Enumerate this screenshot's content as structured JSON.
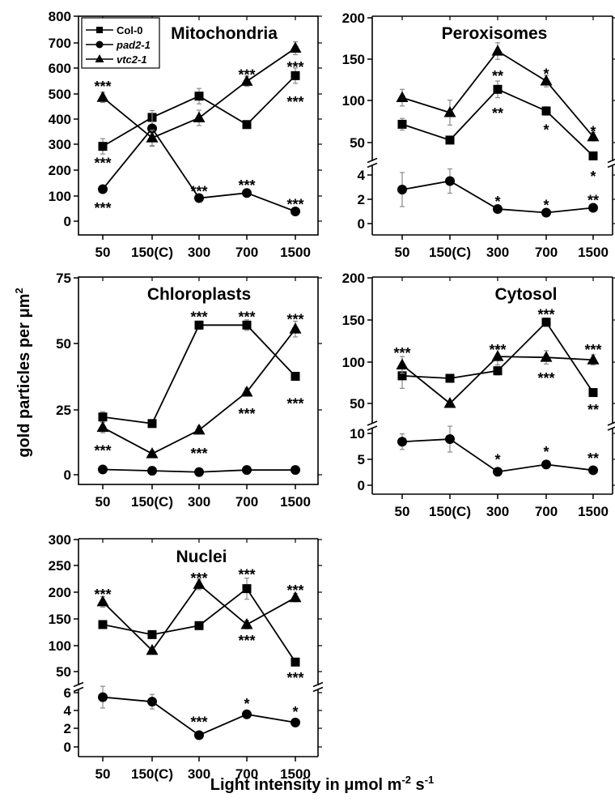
{
  "figure": {
    "ylabel": "gold particles per μm",
    "ylabel_superscript": "2",
    "xlabel": "Light intensity in μmol m",
    "xlabel_sup1": "-2",
    "xlabel_mid": " s",
    "xlabel_sup2": "-1"
  },
  "legend": {
    "entries": [
      {
        "label": "Col-0",
        "marker": "square"
      },
      {
        "label": "pad2-1",
        "marker": "circle"
      },
      {
        "label": "vtc2-1",
        "marker": "triangle"
      }
    ]
  },
  "chart_data": [
    {
      "type": "line",
      "title": "Mitochondria",
      "categories": [
        "50",
        "150(C)",
        "300",
        "700",
        "1500"
      ],
      "yticks": [
        "0",
        "100",
        "200",
        "300",
        "400",
        "500",
        "600",
        "700",
        "800"
      ],
      "ylim": [
        0,
        800
      ],
      "series": [
        {
          "name": "Col-0",
          "marker": "square",
          "values": [
            292,
            405,
            488,
            377,
            568
          ],
          "errors": [
            30,
            15,
            30,
            12,
            30
          ]
        },
        {
          "name": "pad2-1",
          "marker": "circle",
          "values": [
            125,
            362,
            90,
            110,
            38
          ],
          "errors": [
            12,
            70,
            12,
            15,
            8
          ]
        },
        {
          "name": "vtc2-1",
          "marker": "triangle",
          "values": [
            483,
            325,
            403,
            546,
            675
          ],
          "errors": [
            20,
            30,
            30,
            20,
            25
          ]
        }
      ],
      "annotations": [
        {
          "cat": 0,
          "value": 535,
          "text": "***"
        },
        {
          "cat": 0,
          "value": 235,
          "text": "***"
        },
        {
          "cat": 0,
          "value": 60,
          "text": "***"
        },
        {
          "cat": 2,
          "value": 125,
          "text": "***"
        },
        {
          "cat": 3,
          "value": 580,
          "text": "***"
        },
        {
          "cat": 3,
          "value": 148,
          "text": "***"
        },
        {
          "cat": 4,
          "value": 610,
          "text": "***"
        },
        {
          "cat": 4,
          "value": 475,
          "text": "***"
        },
        {
          "cat": 4,
          "value": 75,
          "text": "***"
        }
      ]
    },
    {
      "type": "line",
      "title": "Peroxisomes",
      "categories": [
        "50",
        "150(C)",
        "300",
        "700",
        "1500"
      ],
      "broken_axis": true,
      "upper": {
        "ylim": [
          40,
          200
        ],
        "yticks": [
          "50",
          "100",
          "150",
          "200"
        ]
      },
      "lower": {
        "ylim": [
          0,
          4.5
        ],
        "yticks": [
          "0",
          "2",
          "4"
        ]
      },
      "series": [
        {
          "name": "Col-0",
          "marker": "square",
          "segment": "upper",
          "values": [
            72,
            53,
            114,
            88,
            34
          ],
          "errors": [
            7,
            3,
            10,
            5,
            3
          ]
        },
        {
          "name": "vtc2-1",
          "marker": "triangle",
          "segment": "upper",
          "values": [
            104,
            86,
            160,
            124,
            57
          ],
          "errors": [
            10,
            15,
            10,
            7,
            5
          ]
        },
        {
          "name": "pad2-1",
          "marker": "circle",
          "segment": "lower",
          "values": [
            2.8,
            3.5,
            1.2,
            0.9,
            1.3
          ],
          "errors": [
            1.4,
            1.0,
            0.2,
            0.1,
            0.2
          ]
        }
      ],
      "annotations": [
        {
          "cat": 2,
          "segment": "upper",
          "value": 133,
          "text": "**"
        },
        {
          "cat": 2,
          "segment": "upper",
          "value": 88,
          "text": "**"
        },
        {
          "cat": 3,
          "segment": "upper",
          "value": 135,
          "text": "*"
        },
        {
          "cat": 3,
          "segment": "upper",
          "value": 68,
          "text": "*"
        },
        {
          "cat": 4,
          "segment": "upper",
          "value": 66,
          "text": "*"
        },
        {
          "cat": 4,
          "segment": "upper",
          "value": 12,
          "text": "*"
        },
        {
          "cat": 2,
          "segment": "lower",
          "value": 2.0,
          "text": "*"
        },
        {
          "cat": 3,
          "segment": "lower",
          "value": 1.7,
          "text": "*"
        },
        {
          "cat": 4,
          "segment": "lower",
          "value": 2.1,
          "text": "**"
        }
      ]
    },
    {
      "type": "line",
      "title": "Chloroplasts",
      "categories": [
        "50",
        "150(C)",
        "300",
        "700",
        "1500"
      ],
      "yticks": [
        "0",
        "25",
        "50",
        "75"
      ],
      "ylim": [
        -4,
        75
      ],
      "series": [
        {
          "name": "Col-0",
          "marker": "square",
          "values": [
            22,
            19.5,
            57,
            57,
            37.5
          ],
          "errors": [
            2,
            1,
            1.5,
            2,
            1.5
          ]
        },
        {
          "name": "pad2-1",
          "marker": "circle",
          "values": [
            2,
            1.5,
            1,
            1.8,
            1.8
          ],
          "errors": [
            0.5,
            0.4,
            0.3,
            0.4,
            0.4
          ]
        },
        {
          "name": "vtc2-1",
          "marker": "triangle",
          "values": [
            18,
            8,
            17,
            31.5,
            55.5
          ],
          "errors": [
            2,
            1,
            1.5,
            1.5,
            3
          ]
        }
      ],
      "annotations": [
        {
          "cat": 0,
          "value": 10,
          "text": "***"
        },
        {
          "cat": 2,
          "value": 61,
          "text": "***"
        },
        {
          "cat": 2,
          "value": 9,
          "text": "***"
        },
        {
          "cat": 3,
          "value": 61,
          "text": "***"
        },
        {
          "cat": 3,
          "value": 24,
          "text": "***"
        },
        {
          "cat": 4,
          "value": 60,
          "text": "***"
        },
        {
          "cat": 4,
          "value": 28,
          "text": "***"
        }
      ]
    },
    {
      "type": "line",
      "title": "Cytosol",
      "categories": [
        "50",
        "150(C)",
        "300",
        "700",
        "1500"
      ],
      "broken_axis": true,
      "upper": {
        "ylim": [
          40,
          200
        ],
        "yticks": [
          "50",
          "100",
          "150",
          "200"
        ]
      },
      "lower": {
        "ylim": [
          0,
          11
        ],
        "yticks": [
          "0",
          "5",
          "10"
        ]
      },
      "series": [
        {
          "name": "Col-0",
          "marker": "square",
          "segment": "upper",
          "values": [
            83,
            80,
            89,
            147,
            63
          ],
          "errors": [
            15,
            4,
            5,
            5,
            4
          ]
        },
        {
          "name": "vtc2-1",
          "marker": "triangle",
          "segment": "upper",
          "values": [
            96,
            50,
            106,
            105,
            102
          ],
          "errors": [
            10,
            3,
            10,
            8,
            6
          ]
        },
        {
          "name": "pad2-1",
          "marker": "circle",
          "segment": "lower",
          "values": [
            8.4,
            8.9,
            2.6,
            4.0,
            2.9
          ],
          "errors": [
            1.5,
            2.5,
            0.4,
            0.4,
            0.4
          ]
        }
      ],
      "annotations": [
        {
          "cat": 0,
          "segment": "upper",
          "value": 113,
          "text": "***"
        },
        {
          "cat": 2,
          "segment": "upper",
          "value": 117,
          "text": "***"
        },
        {
          "cat": 3,
          "segment": "upper",
          "value": 159,
          "text": "***"
        },
        {
          "cat": 3,
          "segment": "upper",
          "value": 83,
          "text": "***"
        },
        {
          "cat": 4,
          "segment": "upper",
          "value": 117,
          "text": "***"
        },
        {
          "cat": 4,
          "segment": "upper",
          "value": 45,
          "text": "**"
        },
        {
          "cat": 2,
          "segment": "lower",
          "value": 5.4,
          "text": "*"
        },
        {
          "cat": 3,
          "segment": "lower",
          "value": 6.9,
          "text": "*"
        },
        {
          "cat": 4,
          "segment": "lower",
          "value": 5.6,
          "text": "**"
        }
      ]
    },
    {
      "type": "line",
      "title": "Nuclei",
      "categories": [
        "50",
        "150(C)",
        "300",
        "700",
        "1500"
      ],
      "broken_axis": true,
      "upper": {
        "ylim": [
          40,
          300
        ],
        "yticks": [
          "50",
          "100",
          "150",
          "200",
          "250",
          "300"
        ]
      },
      "lower": {
        "ylim": [
          0,
          6.5
        ],
        "yticks": [
          "0",
          "2",
          "4",
          "6"
        ]
      },
      "series": [
        {
          "name": "Col-0",
          "marker": "square",
          "segment": "upper",
          "values": [
            139,
            120,
            137,
            207,
            68
          ],
          "errors": [
            5,
            5,
            5,
            20,
            5
          ]
        },
        {
          "name": "vtc2-1",
          "marker": "triangle",
          "segment": "upper",
          "values": [
            182,
            90,
            215,
            139,
            190
          ],
          "errors": [
            10,
            5,
            10,
            8,
            8
          ]
        },
        {
          "name": "pad2-1",
          "marker": "circle",
          "segment": "lower",
          "values": [
            5.5,
            5.0,
            1.3,
            3.6,
            2.7
          ],
          "errors": [
            1.2,
            0.8,
            0.2,
            0.4,
            0.3
          ]
        }
      ],
      "annotations": [
        {
          "cat": 0,
          "segment": "upper",
          "value": 200,
          "text": "***"
        },
        {
          "cat": 2,
          "segment": "upper",
          "value": 231,
          "text": "***"
        },
        {
          "cat": 3,
          "segment": "upper",
          "value": 238,
          "text": "***"
        },
        {
          "cat": 3,
          "segment": "upper",
          "value": 113,
          "text": "***"
        },
        {
          "cat": 4,
          "segment": "upper",
          "value": 208,
          "text": "***"
        },
        {
          "cat": 4,
          "segment": "upper",
          "value": 42,
          "text": "***"
        },
        {
          "cat": 2,
          "segment": "lower",
          "value": 3.0,
          "text": "***"
        },
        {
          "cat": 3,
          "segment": "lower",
          "value": 5.0,
          "text": "*"
        },
        {
          "cat": 4,
          "segment": "lower",
          "value": 4.1,
          "text": "*"
        }
      ]
    }
  ]
}
